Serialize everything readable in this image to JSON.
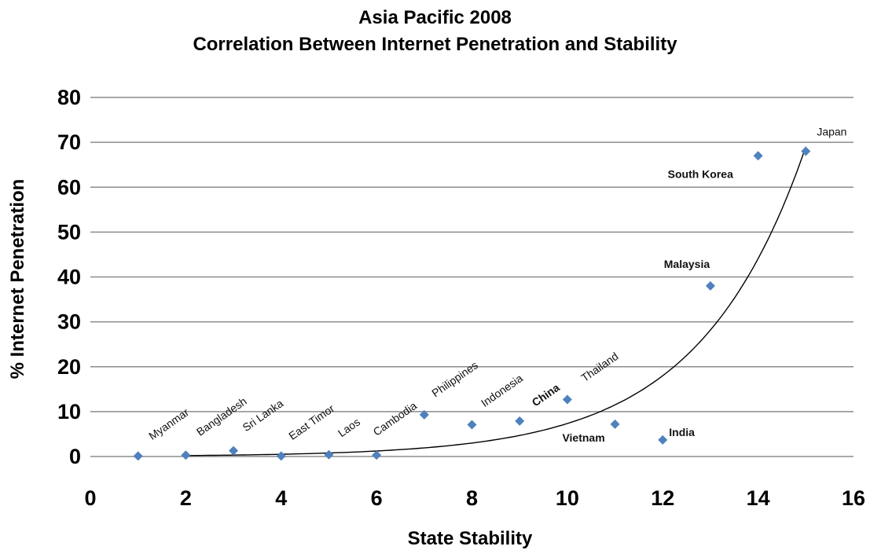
{
  "chart_data": {
    "type": "scatter",
    "title": "Asia Pacific 2008",
    "subtitle": "Correlation Between Internet Penetration and Stability",
    "xlabel": "State Stability",
    "ylabel": "% Internet Penetration",
    "xlim": [
      0,
      16
    ],
    "ylim": [
      0,
      80
    ],
    "x_ticks": [
      0,
      2,
      4,
      6,
      8,
      10,
      12,
      14,
      16
    ],
    "y_ticks": [
      0,
      10,
      20,
      30,
      40,
      50,
      60,
      70,
      80
    ],
    "grid": "horizontal",
    "marker_color": "#4f81bd",
    "gridline_color": "#8c8c8c",
    "trendline": "exponential",
    "points": [
      {
        "label": "Myanmar",
        "x": 1,
        "y": 0.1
      },
      {
        "label": "Bangladesh",
        "x": 2,
        "y": 0.3
      },
      {
        "label": "Sri Lanka",
        "x": 3,
        "y": 1.3
      },
      {
        "label": "East Timor",
        "x": 4,
        "y": 0.1
      },
      {
        "label": "Laos",
        "x": 5,
        "y": 0.4
      },
      {
        "label": "Cambodia",
        "x": 6,
        "y": 0.3
      },
      {
        "label": "Philippines",
        "x": 7,
        "y": 9.3
      },
      {
        "label": "Indonesia",
        "x": 8,
        "y": 7.1
      },
      {
        "label": "China",
        "x": 9,
        "y": 7.9
      },
      {
        "label": "Thailand",
        "x": 10,
        "y": 12.7
      },
      {
        "label": "Vietnam",
        "x": 11,
        "y": 7.2
      },
      {
        "label": "India",
        "x": 12,
        "y": 3.7
      },
      {
        "label": "Malaysia",
        "x": 13,
        "y": 38
      },
      {
        "label": "South Korea",
        "x": 14,
        "y": 67
      },
      {
        "label": "Japan",
        "x": 15,
        "y": 68
      }
    ]
  }
}
